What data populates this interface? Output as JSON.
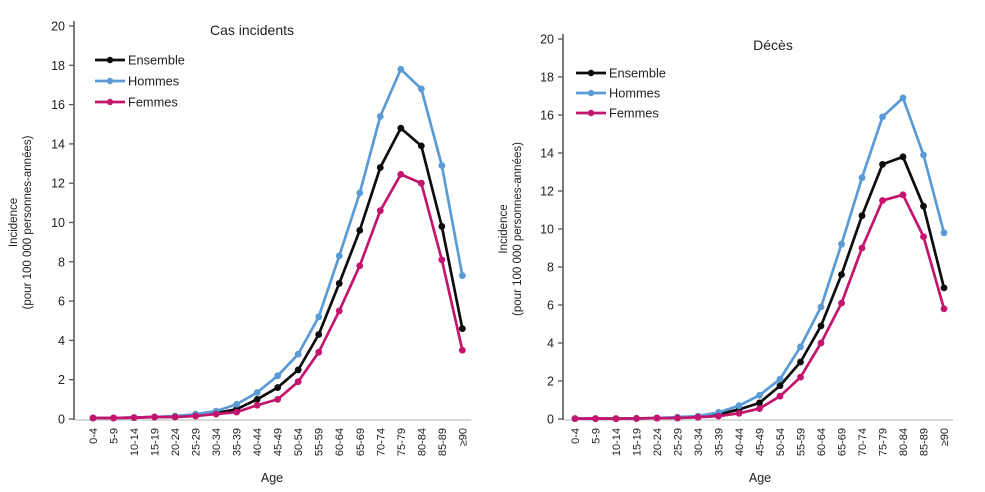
{
  "figure": {
    "background": "#ffffff",
    "axis_color": "#595959",
    "baseline_color": "#d9d9d9",
    "text_color": "#1f1f1f"
  },
  "chart_data": [
    {
      "type": "line",
      "title": "Cas incidents",
      "xlabel": "Age",
      "ylabel_line1": "Incidence",
      "ylabel_line2": "(pour 100 000 personnes-années)",
      "ylim": [
        0,
        20
      ],
      "ytick_step": 2,
      "grid": false,
      "legend_position": "top-left-inside",
      "categories": [
        "0-4",
        "5-9",
        "10-14",
        "15-19",
        "20-24",
        "25-29",
        "30-34",
        "35-39",
        "40-44",
        "45-49",
        "50-54",
        "55-59",
        "60-64",
        "65-69",
        "70-74",
        "75-79",
        "80-84",
        "85-89",
        "≥90"
      ],
      "series": [
        {
          "name": "Ensemble",
          "color": "#0d0d0d",
          "marker": "circle",
          "values": [
            0.05,
            0.05,
            0.07,
            0.1,
            0.12,
            0.2,
            0.3,
            0.5,
            1.0,
            1.6,
            2.5,
            4.3,
            6.9,
            9.6,
            12.8,
            14.8,
            13.9,
            9.8,
            4.6
          ]
        },
        {
          "name": "Hommes",
          "color": "#5b9bd5",
          "marker": "circle",
          "values": [
            0.05,
            0.05,
            0.07,
            0.1,
            0.15,
            0.25,
            0.4,
            0.75,
            1.35,
            2.2,
            3.3,
            5.2,
            8.3,
            11.5,
            15.4,
            17.8,
            16.8,
            12.9,
            7.3
          ]
        },
        {
          "name": "Femmes",
          "color": "#c4156e",
          "marker": "circle",
          "values": [
            0.05,
            0.05,
            0.07,
            0.1,
            0.1,
            0.15,
            0.25,
            0.35,
            0.7,
            1.0,
            1.9,
            3.4,
            5.5,
            7.8,
            10.6,
            12.45,
            12.0,
            8.1,
            3.5
          ]
        }
      ]
    },
    {
      "type": "line",
      "title": "Décès",
      "xlabel": "Age",
      "ylabel_line1": "Incidence",
      "ylabel_line2": "(pour 100 000 personnes-années)",
      "ylim": [
        0,
        20
      ],
      "ytick_step": 2,
      "grid": false,
      "legend_position": "top-left-inside",
      "categories": [
        "0-4",
        "5-9",
        "10-14",
        "15-19",
        "20-24",
        "25-29",
        "30-34",
        "35-39",
        "40-44",
        "45-49",
        "50-54",
        "55-59",
        "60-64",
        "65-69",
        "70-74",
        "75-79",
        "80-84",
        "85-89",
        "≥90"
      ],
      "series": [
        {
          "name": "Ensemble",
          "color": "#0d0d0d",
          "marker": "circle",
          "values": [
            0.02,
            0.02,
            0.02,
            0.03,
            0.05,
            0.07,
            0.1,
            0.25,
            0.5,
            0.85,
            1.75,
            3.0,
            4.9,
            7.6,
            10.7,
            13.4,
            13.8,
            11.2,
            6.9
          ]
        },
        {
          "name": "Hommes",
          "color": "#5b9bd5",
          "marker": "circle",
          "values": [
            0.02,
            0.02,
            0.02,
            0.03,
            0.05,
            0.1,
            0.15,
            0.35,
            0.7,
            1.25,
            2.1,
            3.8,
            5.9,
            9.2,
            12.7,
            15.9,
            16.9,
            13.9,
            9.8
          ]
        },
        {
          "name": "Femmes",
          "color": "#c4156e",
          "marker": "circle",
          "values": [
            0.02,
            0.02,
            0.02,
            0.03,
            0.05,
            0.05,
            0.1,
            0.15,
            0.3,
            0.55,
            1.2,
            2.2,
            4.0,
            6.1,
            9.0,
            11.5,
            11.8,
            9.6,
            5.8
          ]
        }
      ]
    }
  ]
}
